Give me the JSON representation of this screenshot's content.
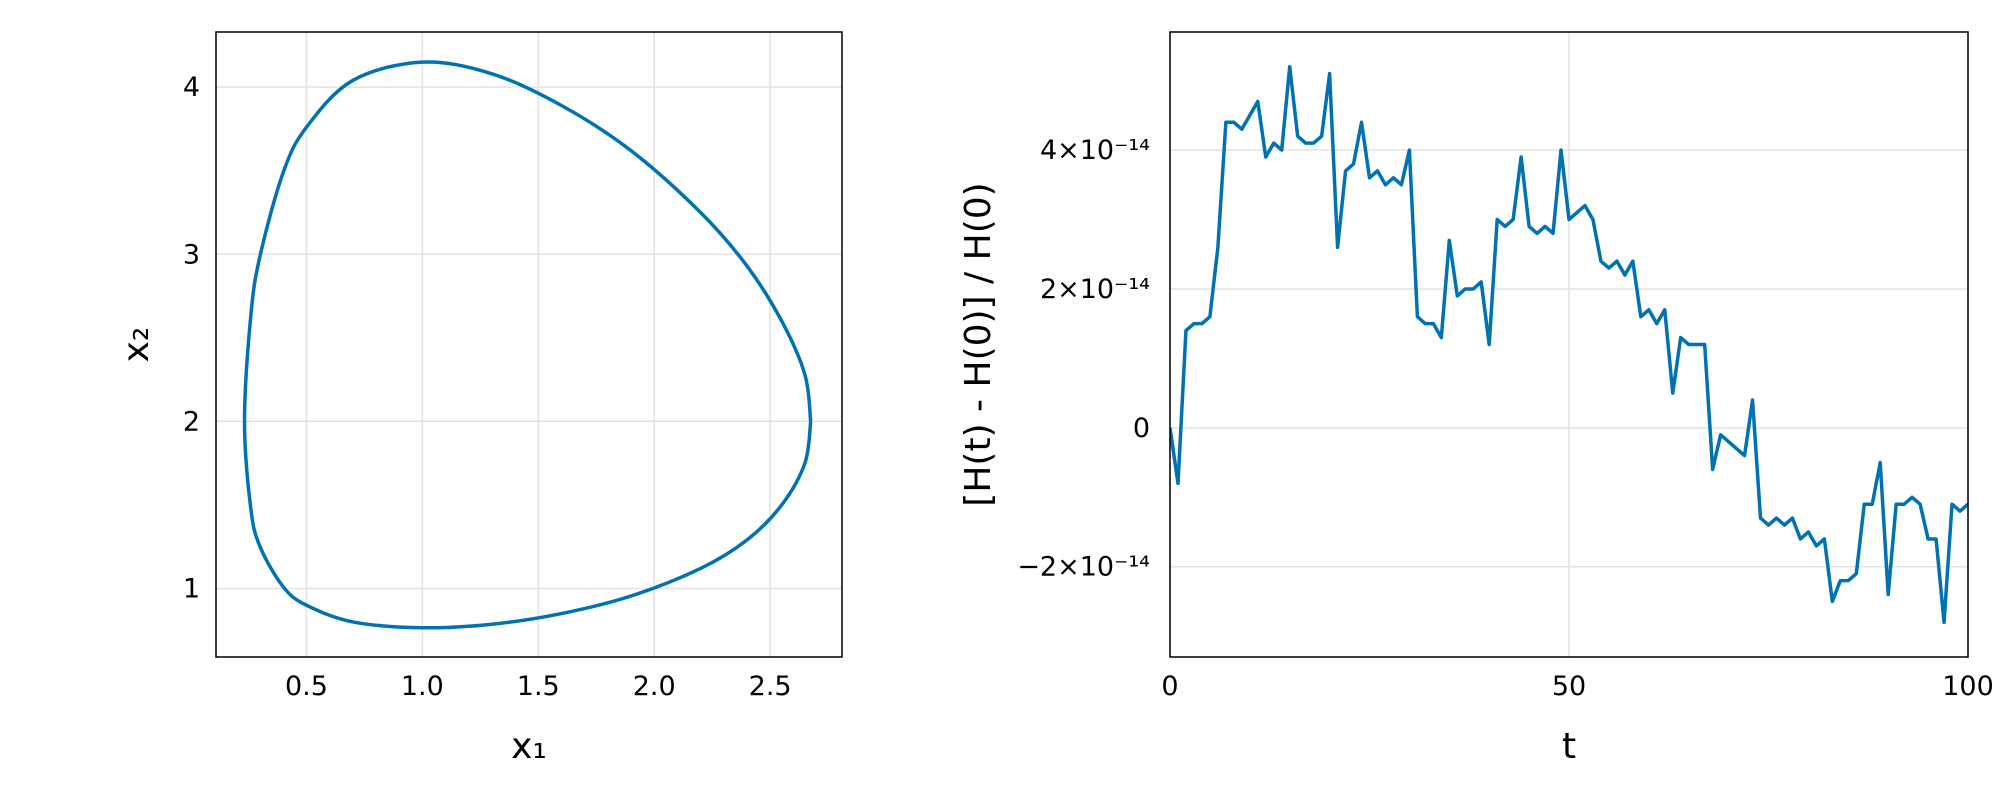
{
  "chart_data": [
    {
      "type": "line",
      "xlabel": "x₁",
      "ylabel": "x₂",
      "color": "#0072b2",
      "grid": true,
      "xlim": [
        0.11,
        2.81
      ],
      "ylim": [
        0.59,
        4.33
      ],
      "xticks": [
        0.5,
        {
          "value": 1.0,
          "label": "1.0"
        },
        1.5,
        {
          "value": 2.0,
          "label": "2.0"
        },
        2.5
      ],
      "yticks": [
        1,
        2,
        3,
        4
      ],
      "x": [
        2.675,
        2.65,
        2.55,
        2.4,
        2.2,
        1.9,
        1.6,
        1.3,
        1.0,
        0.7,
        0.5,
        0.4,
        0.3,
        0.26,
        0.233,
        0.26,
        0.3,
        0.4,
        0.5,
        0.7,
        1.0,
        1.3,
        1.6,
        1.9,
        2.2,
        2.4,
        2.55,
        2.65,
        2.675
      ],
      "values": [
        2.0,
        2.28,
        2.6,
        2.93,
        3.25,
        3.62,
        3.89,
        4.08,
        4.15,
        4.04,
        3.76,
        3.49,
        2.99,
        2.63,
        2.0,
        1.48,
        1.25,
        1.01,
        0.9,
        0.8,
        0.765,
        0.786,
        0.85,
        0.955,
        1.12,
        1.29,
        1.5,
        1.75,
        2.0
      ]
    },
    {
      "type": "line",
      "xlabel": "t",
      "ylabel": "[H(t) - H(0)] / H(0)",
      "color": "#0072b2",
      "grid": true,
      "xlim": [
        0,
        100
      ],
      "ylim": [
        -3.3e-14,
        5.7e-14
      ],
      "xticks": [
        0,
        50,
        100
      ],
      "yticks": [
        {
          "value": -2e-14,
          "label": "−2×10⁻¹⁴"
        },
        0,
        {
          "value": 2e-14,
          "label": "2×10⁻¹⁴"
        },
        {
          "value": 4e-14,
          "label": "4×10⁻¹⁴"
        }
      ],
      "x": [
        0,
        1,
        2,
        3,
        4,
        5,
        6,
        7,
        8,
        9,
        10,
        11,
        12,
        13,
        14,
        15,
        16,
        17,
        18,
        19,
        20,
        21,
        22,
        23,
        24,
        25,
        26,
        27,
        28,
        29,
        30,
        31,
        32,
        33,
        34,
        35,
        36,
        37,
        38,
        39,
        40,
        41,
        42,
        43,
        44,
        45,
        46,
        47,
        48,
        49,
        50,
        51,
        52,
        53,
        54,
        55,
        56,
        57,
        58,
        59,
        60,
        61,
        62,
        63,
        64,
        65,
        66,
        67,
        68,
        69,
        70,
        71,
        72,
        73,
        74,
        75,
        76,
        77,
        78,
        79,
        80,
        81,
        82,
        83,
        84,
        85,
        86,
        87,
        88,
        89,
        90,
        91,
        92,
        93,
        94,
        95,
        96,
        97,
        98,
        99,
        100
      ],
      "values": [
        0,
        -8e-15,
        1.4e-14,
        1.5e-14,
        1.5e-14,
        1.6e-14,
        2.6e-14,
        4.4e-14,
        4.4e-14,
        4.3e-14,
        4.5e-14,
        4.7e-14,
        3.9e-14,
        4.1e-14,
        4e-14,
        5.2e-14,
        4.2e-14,
        4.1e-14,
        4.1e-14,
        4.2e-14,
        5.1e-14,
        2.6e-14,
        3.7e-14,
        3.8e-14,
        4.4e-14,
        3.6e-14,
        3.7e-14,
        3.5e-14,
        3.6e-14,
        3.5e-14,
        4e-14,
        1.6e-14,
        1.5e-14,
        1.5e-14,
        1.3e-14,
        2.7e-14,
        1.9e-14,
        2e-14,
        2e-14,
        2.1e-14,
        1.2e-14,
        3e-14,
        2.9e-14,
        3e-14,
        3.9e-14,
        2.9e-14,
        2.8e-14,
        2.9e-14,
        2.8e-14,
        4e-14,
        3e-14,
        3.1e-14,
        3.2e-14,
        3e-14,
        2.4e-14,
        2.3e-14,
        2.4e-14,
        2.2e-14,
        2.4e-14,
        1.6e-14,
        1.7e-14,
        1.5e-14,
        1.7e-14,
        5e-15,
        1.3e-14,
        1.2e-14,
        1.2e-14,
        1.2e-14,
        -6e-15,
        -1e-15,
        -2e-15,
        -3e-15,
        -4e-15,
        4e-15,
        -1.3e-14,
        -1.4e-14,
        -1.3e-14,
        -1.4e-14,
        -1.3e-14,
        -1.6e-14,
        -1.5e-14,
        -1.7e-14,
        -1.6e-14,
        -2.5e-14,
        -2.2e-14,
        -2.2e-14,
        -2.1e-14,
        -1.1e-14,
        -1.1e-14,
        -5e-15,
        -2.4e-14,
        -1.1e-14,
        -1.1e-14,
        -1e-14,
        -1.1e-14,
        -1.6e-14,
        -1.6e-14,
        -2.8e-14,
        -1.1e-14,
        -1.2e-14,
        -1.1e-14
      ]
    }
  ]
}
